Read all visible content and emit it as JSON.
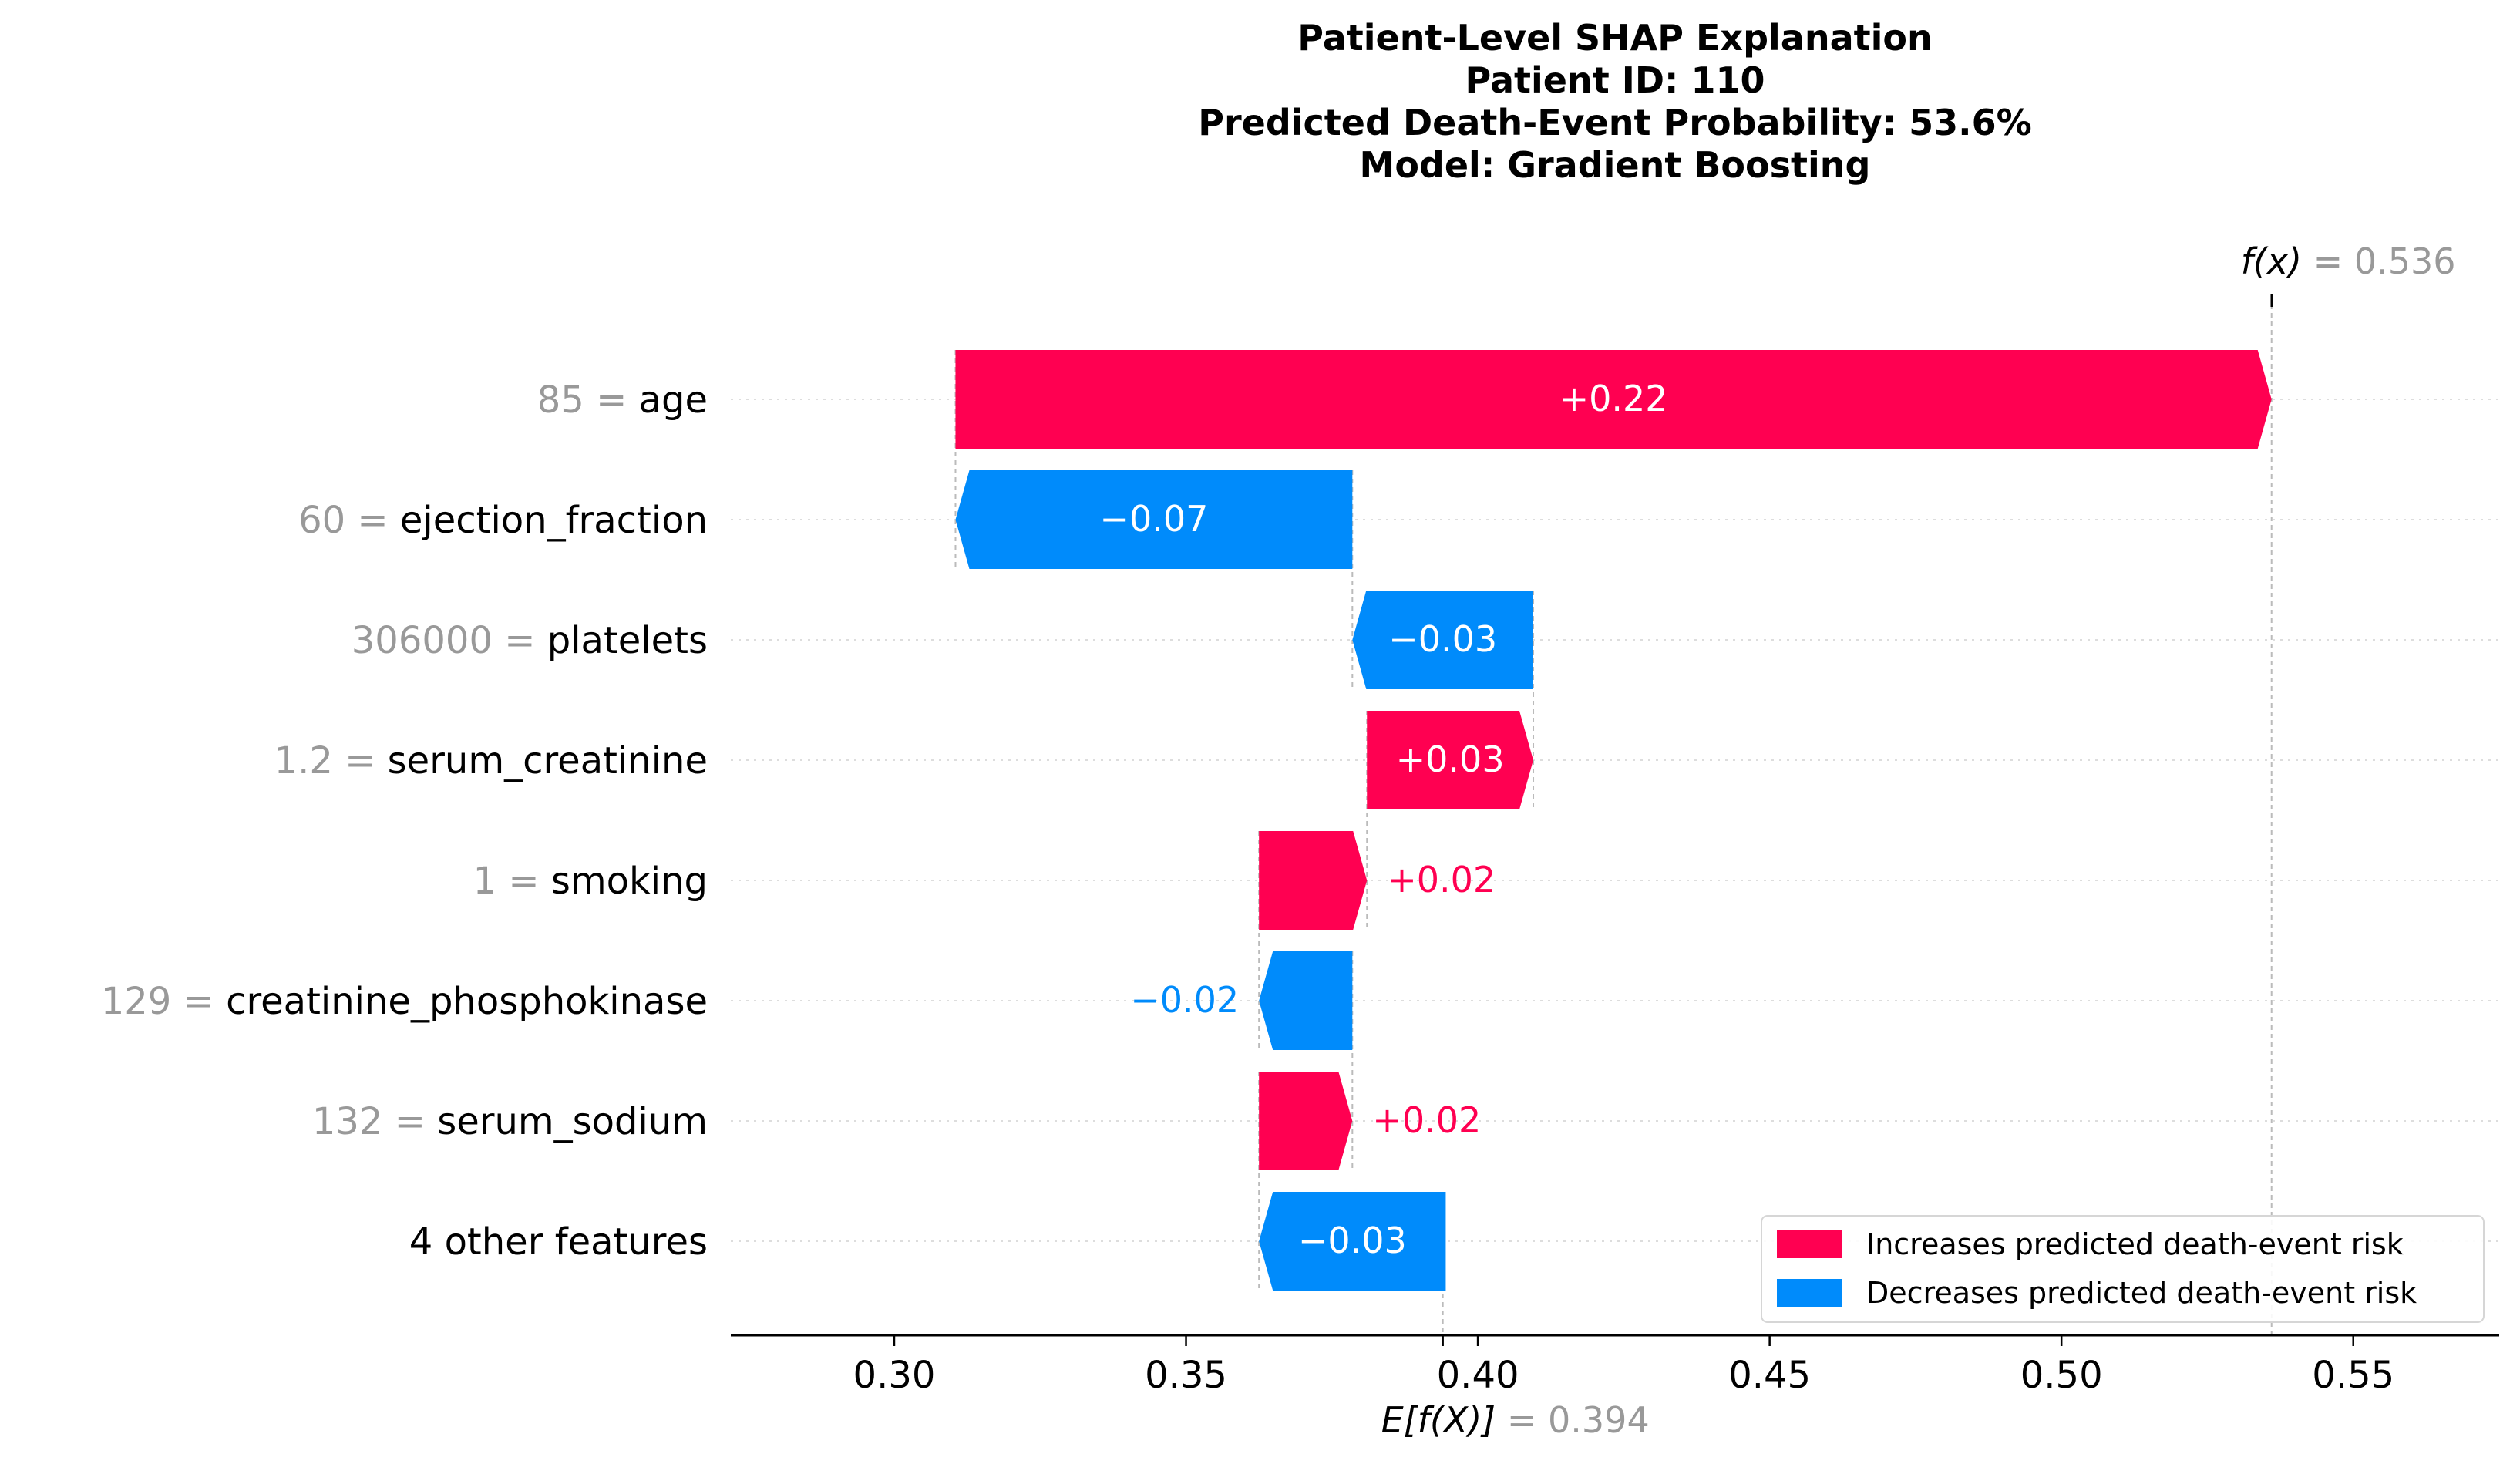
{
  "chart_data": {
    "type": "bar",
    "subtype": "shap-waterfall",
    "title_lines": [
      "Patient-Level SHAP Explanation",
      "Patient ID: 110",
      "Predicted Death-Event Probability: 53.6%",
      "Model: Gradient Boosting"
    ],
    "fx": {
      "symbol": "f(x)",
      "equals": " = ",
      "value_text": "0.536",
      "value": 0.536
    },
    "base": {
      "symbol": "E[f(X)]",
      "equals": " = ",
      "value_text": "0.394",
      "value": 0.394
    },
    "xlim": [
      0.272,
      0.575
    ],
    "xticks": [
      0.3,
      0.35,
      0.4,
      0.45,
      0.5,
      0.55
    ],
    "xtick_labels": [
      "0.30",
      "0.35",
      "0.40",
      "0.45",
      "0.50",
      "0.55"
    ],
    "grid": "dotted horizontal lines per feature row",
    "features": [
      {
        "value": "85",
        "name": "age",
        "start": 0.3105,
        "end": 0.536,
        "label": "+0.22",
        "direction": "positive",
        "label_inside": true
      },
      {
        "value": "60",
        "name": "ejection_fraction",
        "start": 0.3785,
        "end": 0.3105,
        "label": "−0.07",
        "direction": "negative",
        "label_inside": true
      },
      {
        "value": "306000",
        "name": "platelets",
        "start": 0.4095,
        "end": 0.3785,
        "label": "−0.03",
        "direction": "negative",
        "label_inside": true
      },
      {
        "value": "1.2",
        "name": "serum_creatinine",
        "start": 0.381,
        "end": 0.4095,
        "label": "+0.03",
        "direction": "positive",
        "label_inside": true
      },
      {
        "value": "1",
        "name": "smoking",
        "start": 0.3625,
        "end": 0.381,
        "label": "+0.02",
        "direction": "positive",
        "label_inside": false
      },
      {
        "value": "129",
        "name": "creatinine_phosphokinase",
        "start": 0.3785,
        "end": 0.3625,
        "label": "−0.02",
        "direction": "negative",
        "label_inside": false
      },
      {
        "value": "132",
        "name": "serum_sodium",
        "start": 0.3625,
        "end": 0.3785,
        "label": "+0.02",
        "direction": "positive",
        "label_inside": false
      },
      {
        "value": "",
        "name": "4 other features",
        "start": 0.3945,
        "end": 0.3625,
        "label": "−0.03",
        "direction": "negative",
        "label_inside": true
      }
    ],
    "legend": {
      "placement": "lower-right",
      "entries": [
        {
          "label": "Increases predicted death-event risk",
          "color": "#ff0051"
        },
        {
          "label": "Decreases predicted death-event risk",
          "color": "#008bfb"
        }
      ]
    },
    "colors": {
      "positive": "#ff0051",
      "negative": "#008bfb",
      "value_gray": "#999999"
    }
  }
}
